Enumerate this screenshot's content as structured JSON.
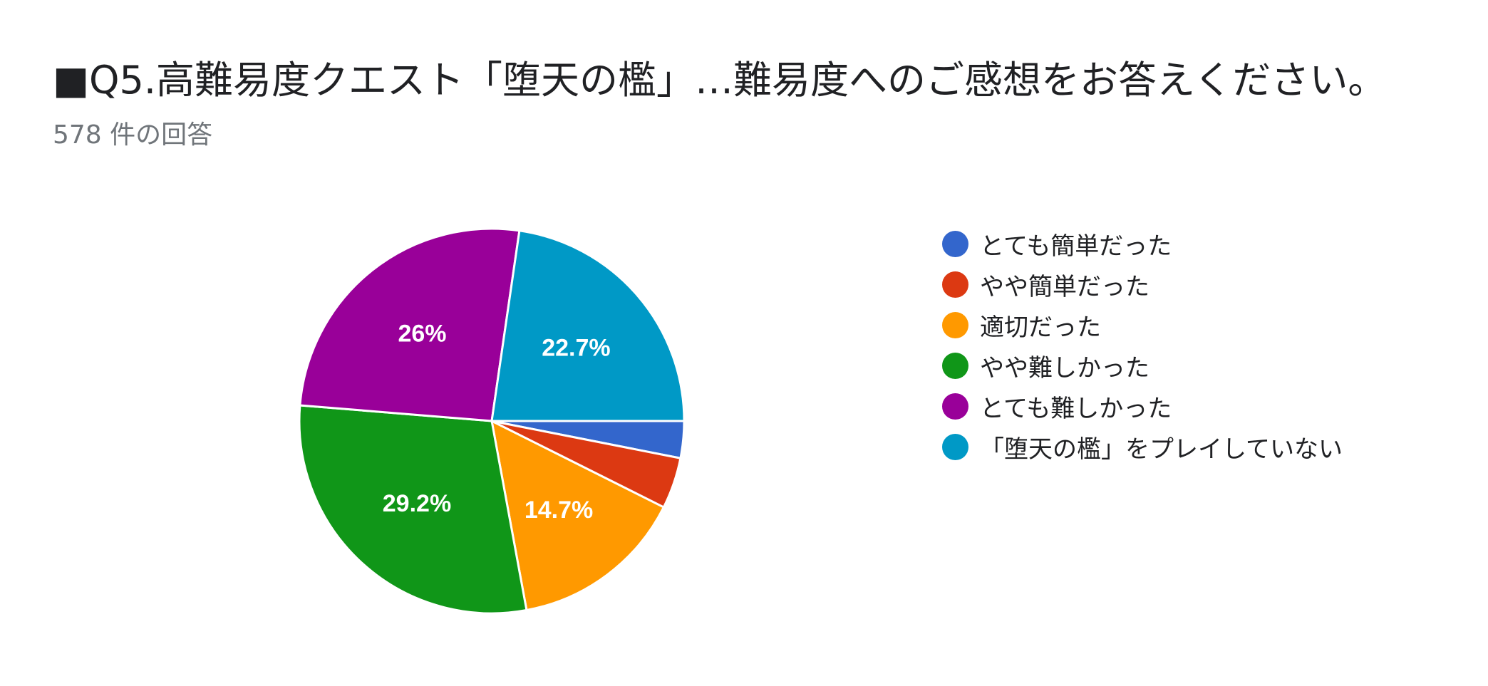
{
  "title": "■Q5.高難易度クエスト「堕天の檻」…難易度へのご感想をお答えください。",
  "subtitle": "578 件の回答",
  "chart_data": {
    "type": "pie",
    "legend_position": "right",
    "slices": [
      {
        "label": "とても簡単だった",
        "value": 3.1,
        "color": "#3366cc",
        "display_label": ""
      },
      {
        "label": "やや簡単だった",
        "value": 4.3,
        "color": "#dc3912",
        "display_label": ""
      },
      {
        "label": "適切だった",
        "value": 14.7,
        "color": "#ff9900",
        "display_label": "14.7%"
      },
      {
        "label": "やや難しかった",
        "value": 29.2,
        "color": "#109618",
        "display_label": "29.2%"
      },
      {
        "label": "とても難しかった",
        "value": 26.0,
        "color": "#990099",
        "display_label": "26%"
      },
      {
        "label": "「堕天の檻」をプレイしていない",
        "value": 22.7,
        "color": "#0099c6",
        "display_label": "22.7%"
      }
    ]
  }
}
